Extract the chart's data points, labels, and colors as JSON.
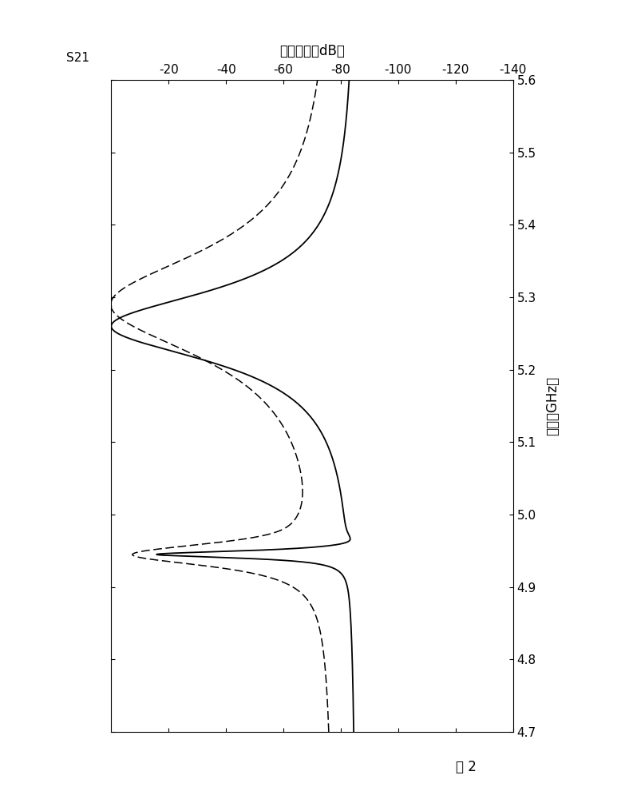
{
  "xlabel": "频率（GHz）",
  "ylabel": "传输系数（dB）",
  "s21_label": "S21",
  "figure_label": "图 2",
  "xlim": [
    4.7,
    5.6
  ],
  "ylim": [
    -140,
    0
  ],
  "xticks": [
    4.7,
    4.8,
    4.9,
    5.0,
    5.1,
    5.2,
    5.3,
    5.4,
    5.5,
    5.6
  ],
  "yticks": [
    -140,
    -120,
    -100,
    -80,
    -60,
    -40,
    -20
  ],
  "ytick_labels": [
    "-140",
    "-120",
    "-100",
    "-80",
    "-60",
    "-40",
    "-20"
  ],
  "f1": 4.945,
  "f2": 5.26,
  "background_color": "#ffffff",
  "line_color": "#000000",
  "figsize": [
    7.78,
    10.0
  ],
  "dpi": 100
}
